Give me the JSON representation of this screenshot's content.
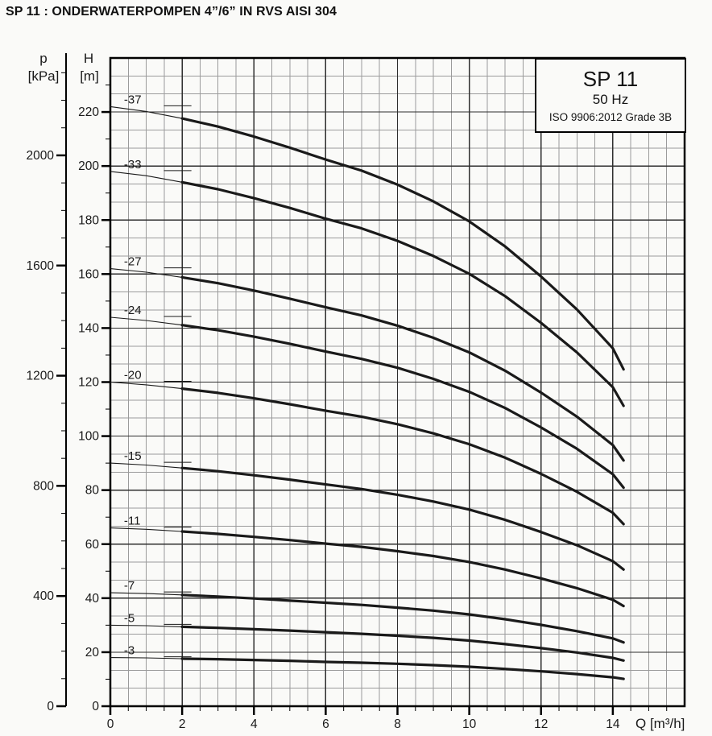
{
  "page": {
    "title": "SP 11 : ONDERWATERPOMPEN 4”/6” IN RVS AISI 304"
  },
  "legend": {
    "model": "SP 11",
    "frequency": "50 Hz",
    "standard": "ISO 9906:2012 Grade 3B"
  },
  "axes": {
    "pressure": {
      "symbol": "p",
      "unit": "[kPa]",
      "major_ticks": [
        0,
        400,
        800,
        1200,
        1600,
        2000
      ],
      "minor_step": 100,
      "minor_max": 2300
    },
    "head": {
      "symbol": "H",
      "unit": "[m]",
      "major_ticks": [
        0,
        20,
        40,
        60,
        80,
        100,
        120,
        140,
        160,
        180,
        200,
        220
      ],
      "minor_step": 10,
      "minor_max": 230,
      "max": 240
    },
    "flow": {
      "symbol": "Q",
      "unit": "[m³/h]",
      "major_ticks": [
        0,
        2,
        4,
        6,
        8,
        10,
        12,
        14
      ],
      "minor_step": 0.5,
      "max": 16
    }
  },
  "chart_data": {
    "type": "line",
    "title": "SP 11",
    "xlabel": "Q [m³/h]",
    "ylabel": "H [m]",
    "ylabel_secondary": "p [kPa]",
    "xlim": [
      0,
      16
    ],
    "ylim": [
      0,
      240
    ],
    "grid": {
      "x_major": 2,
      "x_minor": 0.5,
      "y_major": 20,
      "y_minor_divisions_per_major": 3
    },
    "thin_segment_max_q": 2,
    "x": [
      0,
      1,
      2,
      3,
      4,
      5,
      6,
      7,
      8,
      9,
      10,
      11,
      12,
      13,
      14,
      14.3
    ],
    "series": [
      {
        "name": "-37",
        "values": [
          222,
          220.2,
          217.6,
          214.6,
          210.9,
          206.8,
          202.4,
          198.3,
          193.1,
          186.9,
          179.5,
          170.2,
          159.1,
          146.9,
          132.5,
          124.7
        ]
      },
      {
        "name": "-33",
        "values": [
          198,
          196.4,
          194,
          191.4,
          188.1,
          184.5,
          180.5,
          176.9,
          172.3,
          166.7,
          160.1,
          151.8,
          141.9,
          131,
          118.1,
          111.2
        ]
      },
      {
        "name": "-27",
        "values": [
          162,
          160.7,
          158.8,
          156.6,
          153.9,
          150.9,
          147.7,
          144.7,
          140.9,
          136.4,
          131,
          124.2,
          116.1,
          107.2,
          96.7,
          91
        ]
      },
      {
        "name": "-24",
        "values": [
          144,
          142.8,
          141.1,
          139.2,
          136.8,
          134.2,
          131.3,
          128.6,
          125.3,
          121.2,
          116.4,
          110.4,
          103.2,
          95.3,
          85.9,
          80.9
        ]
      },
      {
        "name": "-20",
        "values": [
          120,
          119,
          117.6,
          116,
          114,
          111.8,
          109.4,
          107.2,
          104.4,
          101,
          97,
          92,
          86,
          79.4,
          71.6,
          67.4
        ]
      },
      {
        "name": "-15",
        "values": [
          90,
          89.3,
          88.2,
          87,
          85.5,
          83.9,
          82.1,
          80.4,
          78.3,
          75.8,
          72.8,
          69,
          64.5,
          59.6,
          53.7,
          50.6
        ]
      },
      {
        "name": "-11",
        "values": [
          66,
          65.5,
          64.7,
          63.8,
          62.7,
          61.5,
          60.2,
          59,
          57.4,
          55.6,
          53.4,
          50.6,
          47.3,
          43.7,
          39.4,
          37.1
        ]
      },
      {
        "name": "-7",
        "values": [
          42,
          41.7,
          41.2,
          40.6,
          39.9,
          39.1,
          38.3,
          37.5,
          36.5,
          35.4,
          34,
          32.2,
          30.1,
          27.8,
          25.1,
          23.6
        ]
      },
      {
        "name": "-5",
        "values": [
          30,
          29.8,
          29.4,
          29,
          28.5,
          28,
          27.4,
          26.8,
          26.1,
          25.3,
          24.3,
          23,
          21.5,
          19.9,
          17.9,
          16.9
        ]
      },
      {
        "name": "-3",
        "values": [
          18,
          17.9,
          17.6,
          17.4,
          17.1,
          16.8,
          16.4,
          16.1,
          15.7,
          15.2,
          14.6,
          13.8,
          12.9,
          11.9,
          10.7,
          10.1
        ]
      }
    ]
  },
  "colors": {
    "curve": "#1a1a1a",
    "grid_minor": "#9b9b9b",
    "grid_major": "#2e2e2e",
    "border": "#000000",
    "text": "#1a1a1a",
    "background": "#fafaf8"
  }
}
